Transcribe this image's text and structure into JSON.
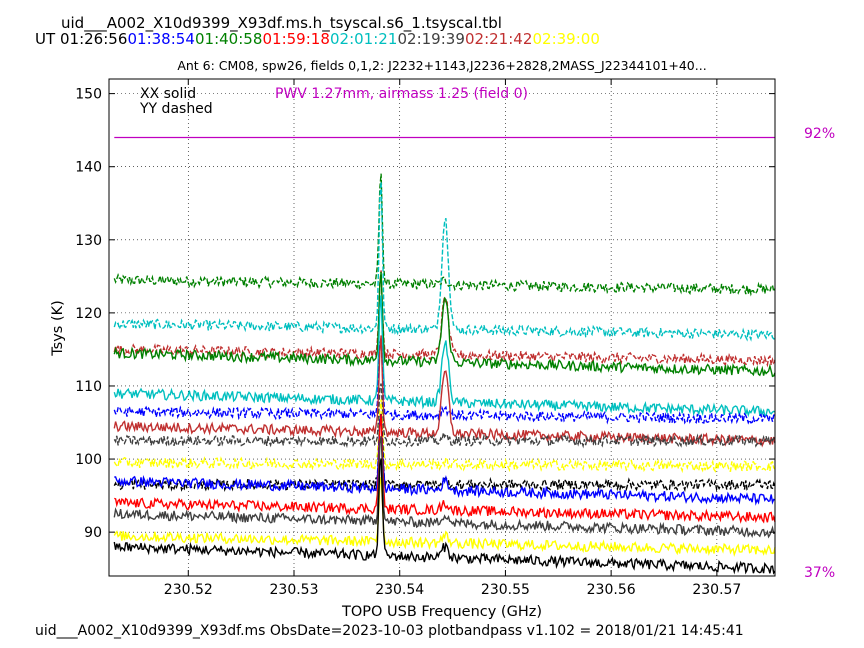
{
  "header": {
    "filename": "uid___A002_X10d9399_X93df.ms.h_tsyscal.s6_1.tsyscal.tbl",
    "ut_label": "UT",
    "times": [
      {
        "text": "01:26:56",
        "color": "#000000"
      },
      {
        "text": "01:38:54",
        "color": "#0000ff"
      },
      {
        "text": "01:40:58",
        "color": "#008000"
      },
      {
        "text": "01:59:18",
        "color": "#ff0000"
      },
      {
        "text": "02:01:21",
        "color": "#00bfbf"
      },
      {
        "text": "02:19:39",
        "color": "#404040"
      },
      {
        "text": "02:21:42",
        "color": "#c03030"
      },
      {
        "text": "02:39:00",
        "color": "#ffff00"
      }
    ]
  },
  "footer": {
    "text": "uid___A002_X10d9399_X93df.ms  ObsDate=2023-10-03   plotbandpass v1.102 = 2018/01/21 14:45:41"
  },
  "chart_data": {
    "type": "line",
    "title": "Ant 6: CM08,  spw26,  fields 0,1,2: J2232+1143,J2236+2828,2MASS_J22344101+40...",
    "xlabel": "TOPO USB Frequency (GHz)",
    "ylabel": "Tsys (K)",
    "xlim": [
      230.5125,
      230.5755
    ],
    "ylim": [
      84,
      152
    ],
    "xticks": [
      "230.52",
      "230.53",
      "230.54",
      "230.55",
      "230.56",
      "230.57"
    ],
    "xtick_values": [
      230.52,
      230.53,
      230.54,
      230.55,
      230.56,
      230.57
    ],
    "yticks": [
      "90",
      "100",
      "110",
      "120",
      "130",
      "140",
      "150"
    ],
    "ytick_values": [
      90,
      100,
      110,
      120,
      130,
      140,
      150
    ],
    "grid": true,
    "legend": [
      "XX solid",
      "YY dashed"
    ],
    "pwv_annotation": {
      "text": "PWV 1.27mm, airmass 1.25 (field 0)",
      "color": "#c000c0"
    },
    "atm_transmission": {
      "top_label": "92%",
      "bottom_label": "37%",
      "level_percent": 92,
      "color": "#c000c0"
    },
    "x_range": [
      230.513,
      230.5755
    ],
    "series": [
      {
        "color": "#008000",
        "style": "dashed",
        "start": 124.5,
        "end": 123.2,
        "peak1": 139.0,
        "peak2": 124.5
      },
      {
        "color": "#00bfbf",
        "style": "dashed",
        "start": 118.5,
        "end": 117.0,
        "peak1": 138.5,
        "peak2": 133.0
      },
      {
        "color": "#c03030",
        "style": "dashed",
        "start": 115.0,
        "end": 113.5,
        "peak1": 126.0,
        "peak2": 122.0
      },
      {
        "color": "#008000",
        "style": "solid",
        "start": 114.5,
        "end": 112.0,
        "peak1": 126.0,
        "peak2": 122.0
      },
      {
        "color": "#00bfbf",
        "style": "solid",
        "start": 109.0,
        "end": 106.5,
        "peak1": 123.0,
        "peak2": 116.0
      },
      {
        "color": "#0000ff",
        "style": "dashed",
        "start": 106.5,
        "end": 105.5,
        "peak1": 117.0,
        "peak2": 107.0
      },
      {
        "color": "#c03030",
        "style": "solid",
        "start": 104.5,
        "end": 102.5,
        "peak1": 117.0,
        "peak2": 112.0
      },
      {
        "color": "#404040",
        "style": "dashed",
        "start": 102.5,
        "end": 102.5,
        "peak1": 110.0,
        "peak2": 103.0
      },
      {
        "color": "#ffff00",
        "style": "dashed",
        "start": 99.5,
        "end": 99.0,
        "peak1": 108.0,
        "peak2": 99.5
      },
      {
        "color": "#000000",
        "style": "dashed",
        "start": 96.5,
        "end": 96.5,
        "peak1": 107.0,
        "peak2": 97.0
      },
      {
        "color": "#0000ff",
        "style": "solid",
        "start": 97.0,
        "end": 94.5,
        "peak1": 106.0,
        "peak2": 97.0
      },
      {
        "color": "#ff0000",
        "style": "solid",
        "start": 94.0,
        "end": 92.0,
        "peak1": 106.0,
        "peak2": 94.0
      },
      {
        "color": "#404040",
        "style": "solid",
        "start": 92.5,
        "end": 90.0,
        "peak1": 104.0,
        "peak2": 92.5
      },
      {
        "color": "#ffff00",
        "style": "solid",
        "start": 89.5,
        "end": 87.5,
        "peak1": 98.0,
        "peak2": 89.5
      },
      {
        "color": "#000000",
        "style": "solid",
        "start": 88.0,
        "end": 85.0,
        "peak1": 101.0,
        "peak2": 88.0
      }
    ]
  }
}
